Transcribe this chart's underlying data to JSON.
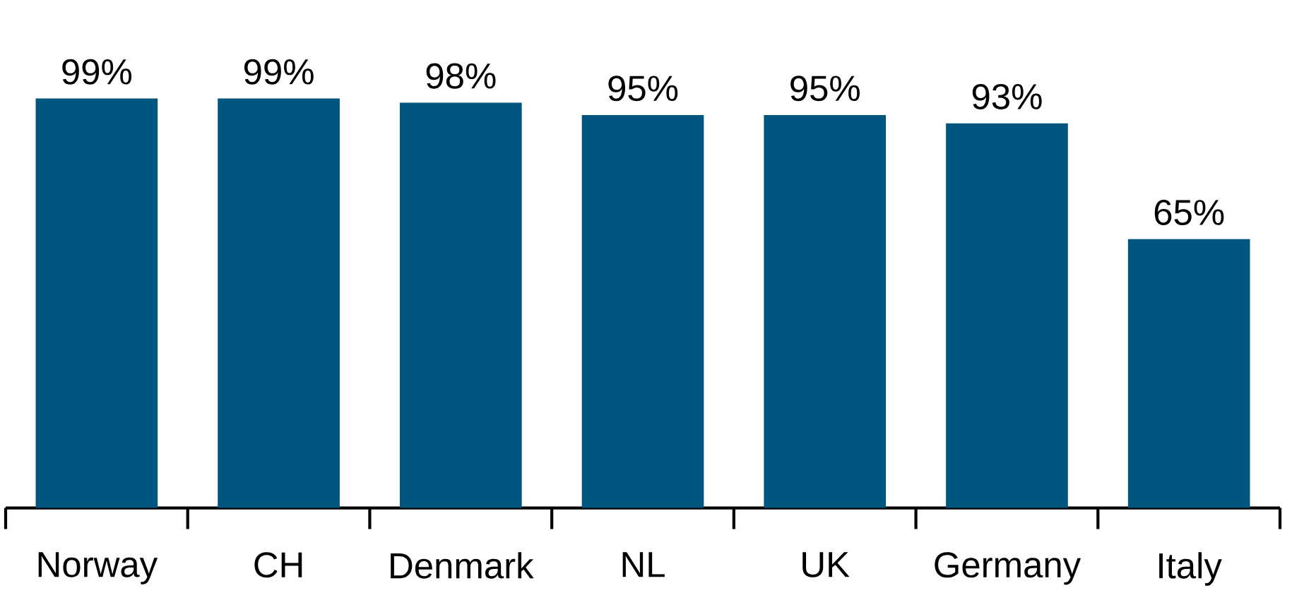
{
  "chart_data": {
    "type": "bar",
    "categories": [
      "Norway",
      "CH",
      "Denmark",
      "NL",
      "UK",
      "Germany",
      "Italy"
    ],
    "values": [
      99,
      99,
      98,
      95,
      95,
      93,
      65
    ],
    "color": "#00567f",
    "value_labels": [
      "99%",
      "99%",
      "98%",
      "95%",
      "95%",
      "93%",
      "65%"
    ]
  }
}
